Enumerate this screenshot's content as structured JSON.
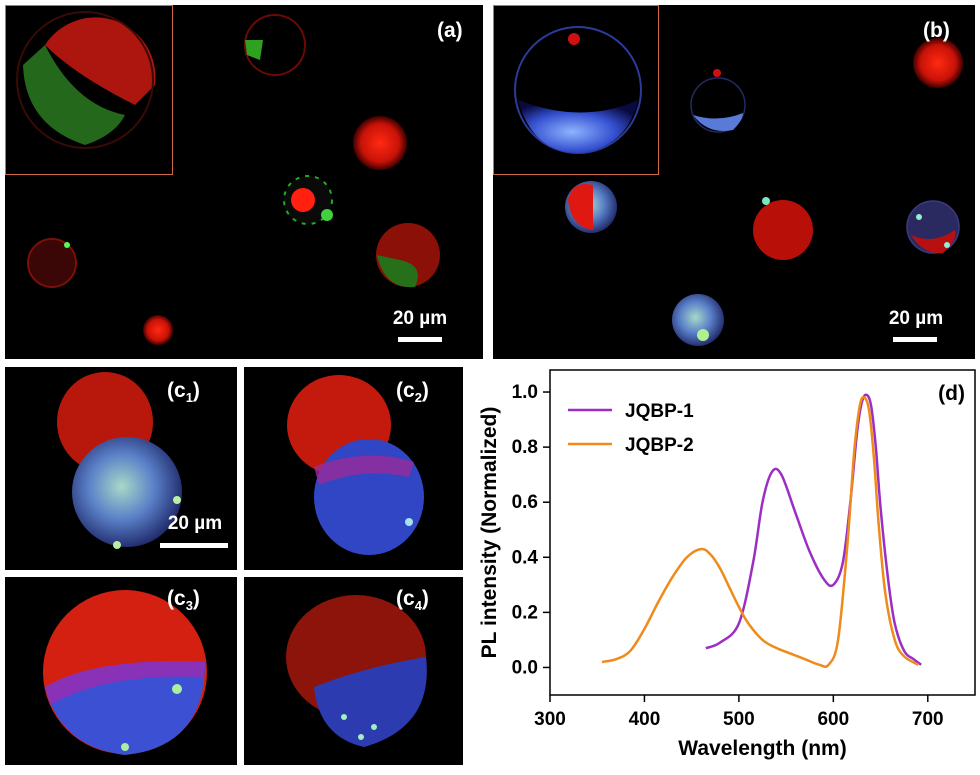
{
  "panels": {
    "a": {
      "label": "(a)",
      "scale": "20 µm"
    },
    "b": {
      "label": "(b)",
      "scale": "20 µm"
    },
    "c1": {
      "label_main": "(c",
      "label_sub": "1",
      "label_end": ")",
      "scale": "20 µm"
    },
    "c2": {
      "label_main": "(c",
      "label_sub": "2",
      "label_end": ")"
    },
    "c3": {
      "label_main": "(c",
      "label_sub": "3",
      "label_end": ")"
    },
    "c4": {
      "label_main": "(c",
      "label_sub": "4",
      "label_end": ")"
    }
  },
  "colors": {
    "JQBP-1": "#9b2fc4",
    "JQBP-2": "#f08a1a",
    "inset_border": "#d2694a"
  },
  "chart_data": {
    "type": "line",
    "panel_label": "(d)",
    "xlabel": "Wavelength (nm)",
    "ylabel": "PL intensity (Normalized)",
    "xlim": [
      300,
      750
    ],
    "ylim": [
      -0.1,
      1.08
    ],
    "xticks": [
      300,
      400,
      500,
      600,
      700
    ],
    "yticks": [
      0.0,
      0.2,
      0.4,
      0.6,
      0.8,
      1.0
    ],
    "xtick_labels": [
      "300",
      "400",
      "500",
      "600",
      "700"
    ],
    "ytick_labels": [
      "0.0",
      "0.2",
      "0.4",
      "0.6",
      "0.8",
      "1.0"
    ],
    "legend": "top-left",
    "series": [
      {
        "name": "JQBP-1",
        "color": "#9b2fc4",
        "x": [
          465,
          480,
          500,
          515,
          525,
          535,
          545,
          560,
          575,
          590,
          600,
          610,
          618,
          625,
          630,
          635,
          640,
          645,
          650,
          658,
          665,
          675,
          685,
          693
        ],
        "y": [
          0.07,
          0.09,
          0.16,
          0.38,
          0.6,
          0.71,
          0.7,
          0.56,
          0.42,
          0.32,
          0.3,
          0.38,
          0.6,
          0.85,
          0.96,
          0.99,
          0.95,
          0.8,
          0.58,
          0.32,
          0.16,
          0.06,
          0.03,
          0.01
        ]
      },
      {
        "name": "JQBP-2",
        "color": "#f08a1a",
        "x": [
          355,
          370,
          385,
          400,
          415,
          430,
          445,
          460,
          470,
          480,
          490,
          500,
          510,
          525,
          540,
          555,
          570,
          585,
          595,
          605,
          615,
          622,
          628,
          633,
          638,
          643,
          648,
          655,
          665,
          675,
          690
        ],
        "y": [
          0.02,
          0.03,
          0.06,
          0.14,
          0.24,
          0.33,
          0.4,
          0.43,
          0.41,
          0.36,
          0.29,
          0.22,
          0.16,
          0.1,
          0.07,
          0.05,
          0.03,
          0.01,
          0.01,
          0.1,
          0.45,
          0.78,
          0.95,
          0.98,
          0.93,
          0.76,
          0.52,
          0.27,
          0.1,
          0.04,
          0.01
        ]
      }
    ]
  }
}
